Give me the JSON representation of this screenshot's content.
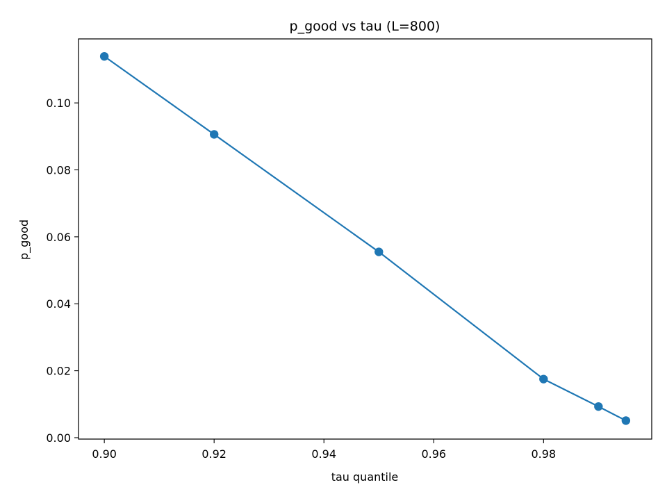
{
  "chart_data": {
    "type": "line",
    "title": "p_good vs tau (L=800)",
    "xlabel": "tau quantile",
    "ylabel": "p_good",
    "xlim": [
      0.8953,
      0.9997
    ],
    "ylim": [
      -0.00042,
      0.11912
    ],
    "xticks": [
      0.9,
      0.92,
      0.94,
      0.96,
      0.98
    ],
    "xtick_labels": [
      "0.90",
      "0.92",
      "0.94",
      "0.96",
      "0.98"
    ],
    "yticks": [
      0.0,
      0.02,
      0.04,
      0.06,
      0.08,
      0.1
    ],
    "ytick_labels": [
      "0.00",
      "0.02",
      "0.04",
      "0.06",
      "0.08",
      "0.10"
    ],
    "grid": false,
    "legend": "none",
    "series": [
      {
        "color": "#1f77b4",
        "marker": "circle",
        "x": [
          0.9,
          0.92,
          0.95,
          0.98,
          0.99,
          0.995
        ],
        "y": [
          0.1139,
          0.0906,
          0.0555,
          0.0175,
          0.0093,
          0.0051
        ]
      }
    ]
  }
}
